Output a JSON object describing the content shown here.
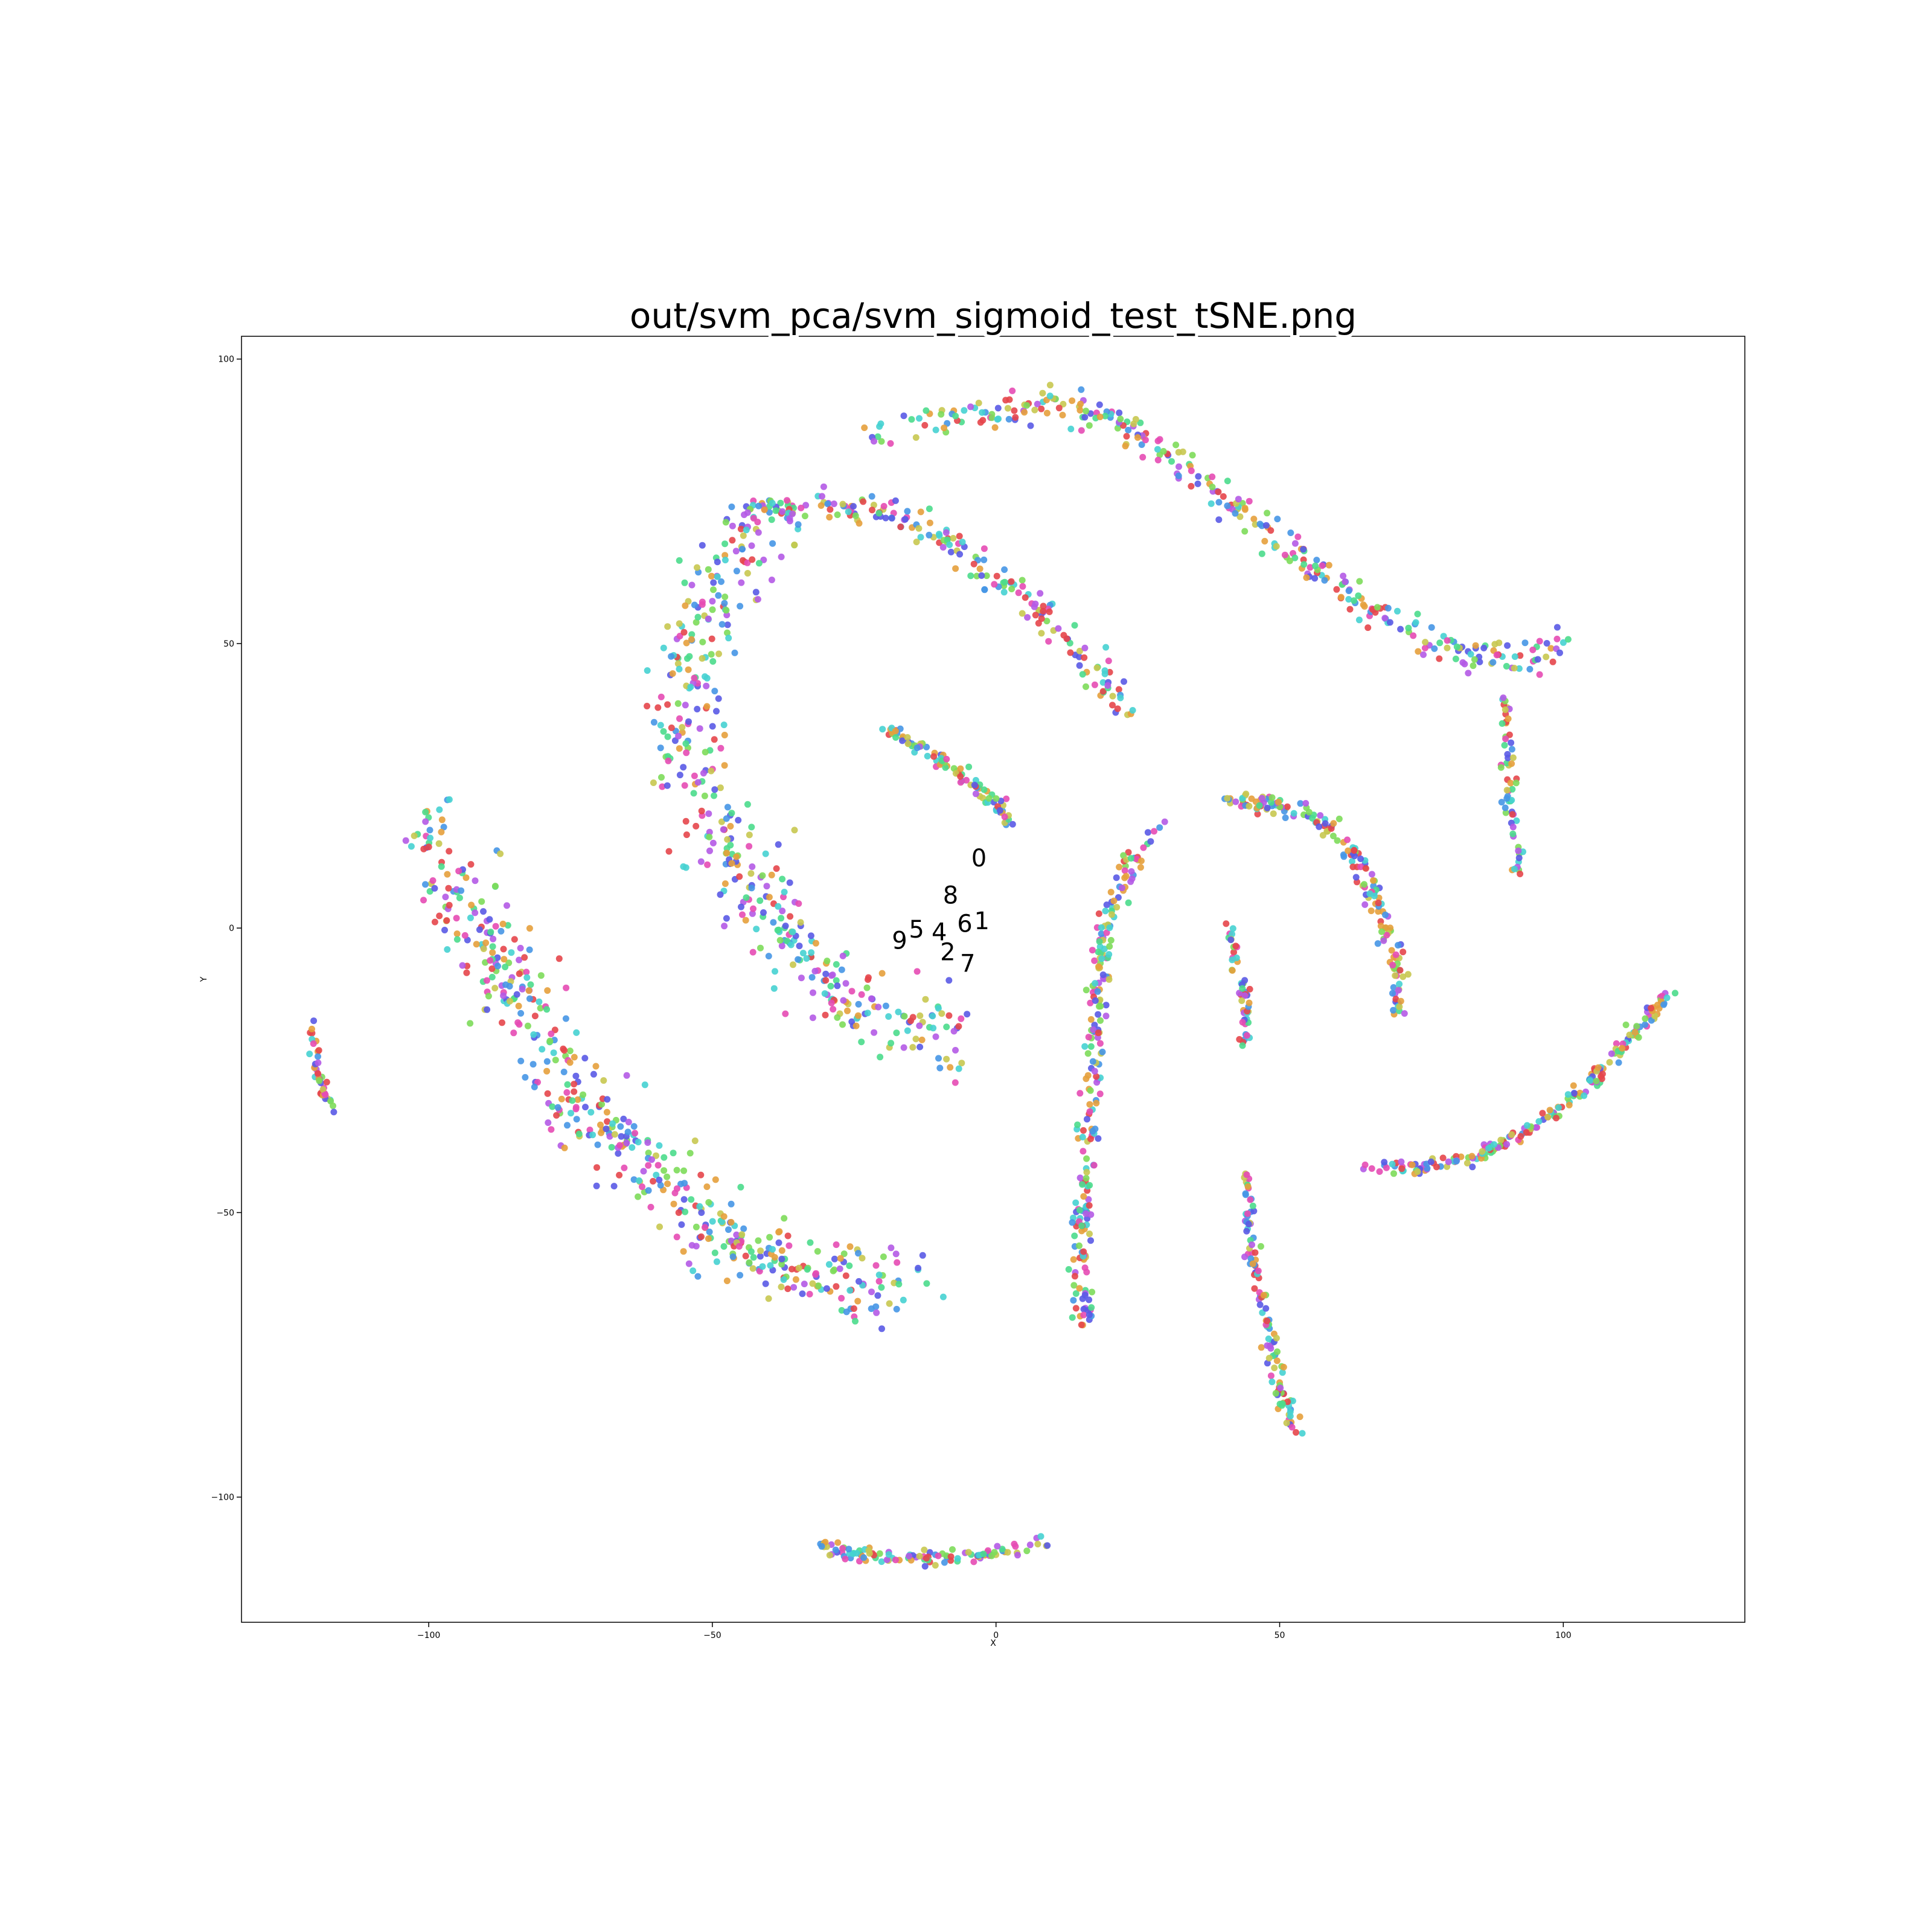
{
  "chart_data": {
    "type": "scatter",
    "title": "out/svm_pca/svm_sigmoid_test_tSNE.png",
    "xlabel": "X",
    "ylabel": "Y",
    "xlim": [
      -133,
      132
    ],
    "ylim": [
      -122,
      104
    ],
    "xticks": [
      -100,
      -50,
      0,
      50,
      100
    ],
    "yticks": [
      -100,
      -50,
      0,
      50,
      100
    ],
    "xtick_labels": [
      "−100",
      "−50",
      "0",
      "50",
      "100"
    ],
    "ytick_labels": [
      "−100",
      "−50",
      "0",
      "50",
      "100"
    ],
    "grid": false,
    "legend": "none",
    "palette": [
      "#e6464b",
      "#e6a03c",
      "#c8c850",
      "#7ddc5a",
      "#4bdc8c",
      "#46d2d2",
      "#4696e6",
      "#5a5ae6",
      "#b45ae6",
      "#e64bb4"
    ],
    "cluster_labels": [
      {
        "text": "0",
        "x": -3,
        "y": 12
      },
      {
        "text": "8",
        "x": -8,
        "y": 5.5
      },
      {
        "text": "6",
        "x": -5.5,
        "y": 0.5
      },
      {
        "text": "1",
        "x": -2.5,
        "y": 1
      },
      {
        "text": "5",
        "x": -14,
        "y": -0.5
      },
      {
        "text": "4",
        "x": -10,
        "y": -1
      },
      {
        "text": "9",
        "x": -17,
        "y": -2.5
      },
      {
        "text": "2",
        "x": -8.5,
        "y": -4.5
      },
      {
        "text": "7",
        "x": -5,
        "y": -6.5
      }
    ],
    "clusters": [
      {
        "path": [
          [
            -22,
            86
          ],
          [
            -12,
            89
          ],
          [
            0,
            91
          ],
          [
            10,
            92
          ],
          [
            18,
            90
          ],
          [
            25,
            87
          ],
          [
            35,
            80
          ],
          [
            45,
            72
          ],
          [
            55,
            64
          ],
          [
            65,
            57
          ],
          [
            75,
            51
          ],
          [
            85,
            48
          ],
          [
            95,
            48
          ],
          [
            100,
            50
          ]
        ],
        "count": 320,
        "spread": 1.4
      },
      {
        "path": [
          [
            -45,
            73
          ],
          [
            -35,
            74
          ],
          [
            -25,
            74
          ],
          [
            -15,
            71
          ],
          [
            -5,
            66
          ],
          [
            5,
            58
          ],
          [
            15,
            48
          ],
          [
            24,
            38
          ]
        ],
        "count": 210,
        "spread": 1.3
      },
      {
        "path": [
          [
            -39,
            73
          ],
          [
            -45,
            66
          ],
          [
            -50,
            58
          ],
          [
            -54,
            48
          ],
          [
            -55,
            35
          ],
          [
            -52,
            22
          ],
          [
            -47,
            12
          ],
          [
            -40,
            4
          ],
          [
            -35,
            -5
          ],
          [
            -28,
            -12
          ],
          [
            -20,
            -16
          ],
          [
            -10,
            -18
          ],
          [
            -6,
            -19
          ]
        ],
        "count": 420,
        "spread": 3.5
      },
      {
        "path": [
          [
            -19,
            35
          ],
          [
            -12,
            31
          ],
          [
            -5,
            26
          ],
          [
            0,
            22
          ],
          [
            3,
            18
          ]
        ],
        "count": 90,
        "spread": 0.7
      },
      {
        "path": [
          [
            -100,
            18
          ],
          [
            -97,
            10
          ],
          [
            -92,
            0
          ],
          [
            -86,
            -10
          ],
          [
            -80,
            -20
          ],
          [
            -74,
            -30
          ],
          [
            -66,
            -38
          ],
          [
            -58,
            -46
          ],
          [
            -50,
            -52
          ],
          [
            -40,
            -58
          ],
          [
            -30,
            -61
          ],
          [
            -20,
            -63
          ],
          [
            -17,
            -63
          ]
        ],
        "count": 500,
        "spread": 3.5
      },
      {
        "path": [
          [
            -121,
            -17
          ],
          [
            -120,
            -24
          ],
          [
            -118,
            -30
          ],
          [
            -117,
            -32
          ]
        ],
        "count": 40,
        "spread": 0.5
      },
      {
        "path": [
          [
            -33,
            -108
          ],
          [
            -25,
            -110
          ],
          [
            -12,
            -111
          ],
          [
            0,
            -110
          ],
          [
            9,
            -108
          ]
        ],
        "count": 110,
        "spread": 0.6
      },
      {
        "path": [
          [
            29,
            18
          ],
          [
            24,
            12
          ],
          [
            20,
            4
          ],
          [
            18,
            -10
          ],
          [
            17,
            -25
          ],
          [
            16,
            -40
          ],
          [
            15,
            -55
          ],
          [
            15,
            -62
          ],
          [
            16,
            -70
          ]
        ],
        "count": 240,
        "spread": 0.9
      },
      {
        "path": [
          [
            39,
            23
          ],
          [
            48,
            22
          ],
          [
            57,
            19
          ],
          [
            63,
            13
          ],
          [
            67,
            5
          ],
          [
            70,
            -5
          ],
          [
            71,
            -15
          ]
        ],
        "count": 180,
        "spread": 0.9
      },
      {
        "path": [
          [
            90,
            40
          ],
          [
            90,
            30
          ],
          [
            91,
            20
          ],
          [
            92,
            10
          ]
        ],
        "count": 60,
        "spread": 0.6
      },
      {
        "path": [
          [
            41,
            0
          ],
          [
            42,
            -5
          ],
          [
            44,
            -12
          ],
          [
            44,
            -21
          ]
        ],
        "count": 50,
        "spread": 0.5
      },
      {
        "path": [
          [
            44,
            -43
          ],
          [
            45,
            -55
          ],
          [
            47,
            -65
          ],
          [
            49,
            -75
          ],
          [
            51,
            -84
          ],
          [
            53,
            -89
          ]
        ],
        "count": 120,
        "spread": 0.7
      },
      {
        "path": [
          [
            65,
            -42
          ],
          [
            75,
            -42
          ],
          [
            85,
            -40
          ],
          [
            95,
            -35
          ],
          [
            105,
            -27
          ],
          [
            112,
            -19
          ],
          [
            119,
            -11
          ]
        ],
        "count": 200,
        "spread": 0.6
      }
    ]
  }
}
